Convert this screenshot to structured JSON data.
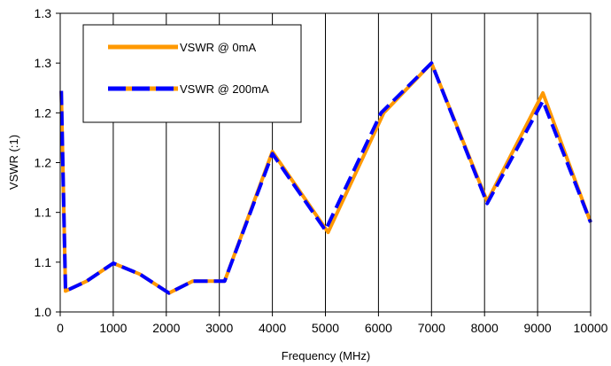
{
  "chart_data": {
    "type": "line",
    "title": "",
    "xlabel": "Frequency (MHz)",
    "ylabel": "VSWR (:1)",
    "xlim": [
      0,
      10000
    ],
    "ylim": [
      1.0,
      1.3
    ],
    "x_ticks": [
      0,
      1000,
      2000,
      3000,
      4000,
      5000,
      6000,
      7000,
      8000,
      9000,
      10000
    ],
    "x_tick_labels": [
      "0",
      "1000",
      "2000",
      "3000",
      "4000",
      "5000",
      "6000",
      "7000",
      "8000",
      "9000",
      "10000"
    ],
    "y_ticks": [
      1.0,
      1.05,
      1.1,
      1.15,
      1.2,
      1.25,
      1.3
    ],
    "y_tick_labels": [
      "1.0",
      "1.1",
      "1.1",
      "1.2",
      "1.2",
      "1.3",
      "1.3"
    ],
    "grid": "vertical",
    "legend_position": "top-left",
    "series": [
      {
        "name": "VSWR @ 0mA",
        "color": "#FF9900",
        "style": "solid",
        "x": [
          20,
          100,
          500,
          1000,
          1500,
          2050,
          2500,
          3100,
          4000,
          5050,
          6100,
          7000,
          8050,
          9100,
          10000
        ],
        "y": [
          1.222,
          1.021,
          1.031,
          1.049,
          1.038,
          1.019,
          1.031,
          1.031,
          1.161,
          1.08,
          1.2,
          1.25,
          1.111,
          1.22,
          1.09
        ]
      },
      {
        "name": "VSWR @ 200mA",
        "color": "#0000FF",
        "style": "dashed",
        "x": [
          20,
          100,
          500,
          1000,
          1500,
          2050,
          2500,
          3100,
          4000,
          5000,
          6050,
          7000,
          8050,
          9100,
          10000
        ],
        "y": [
          1.222,
          1.021,
          1.031,
          1.049,
          1.038,
          1.019,
          1.031,
          1.031,
          1.159,
          1.082,
          1.2,
          1.25,
          1.109,
          1.212,
          1.09
        ]
      }
    ]
  }
}
